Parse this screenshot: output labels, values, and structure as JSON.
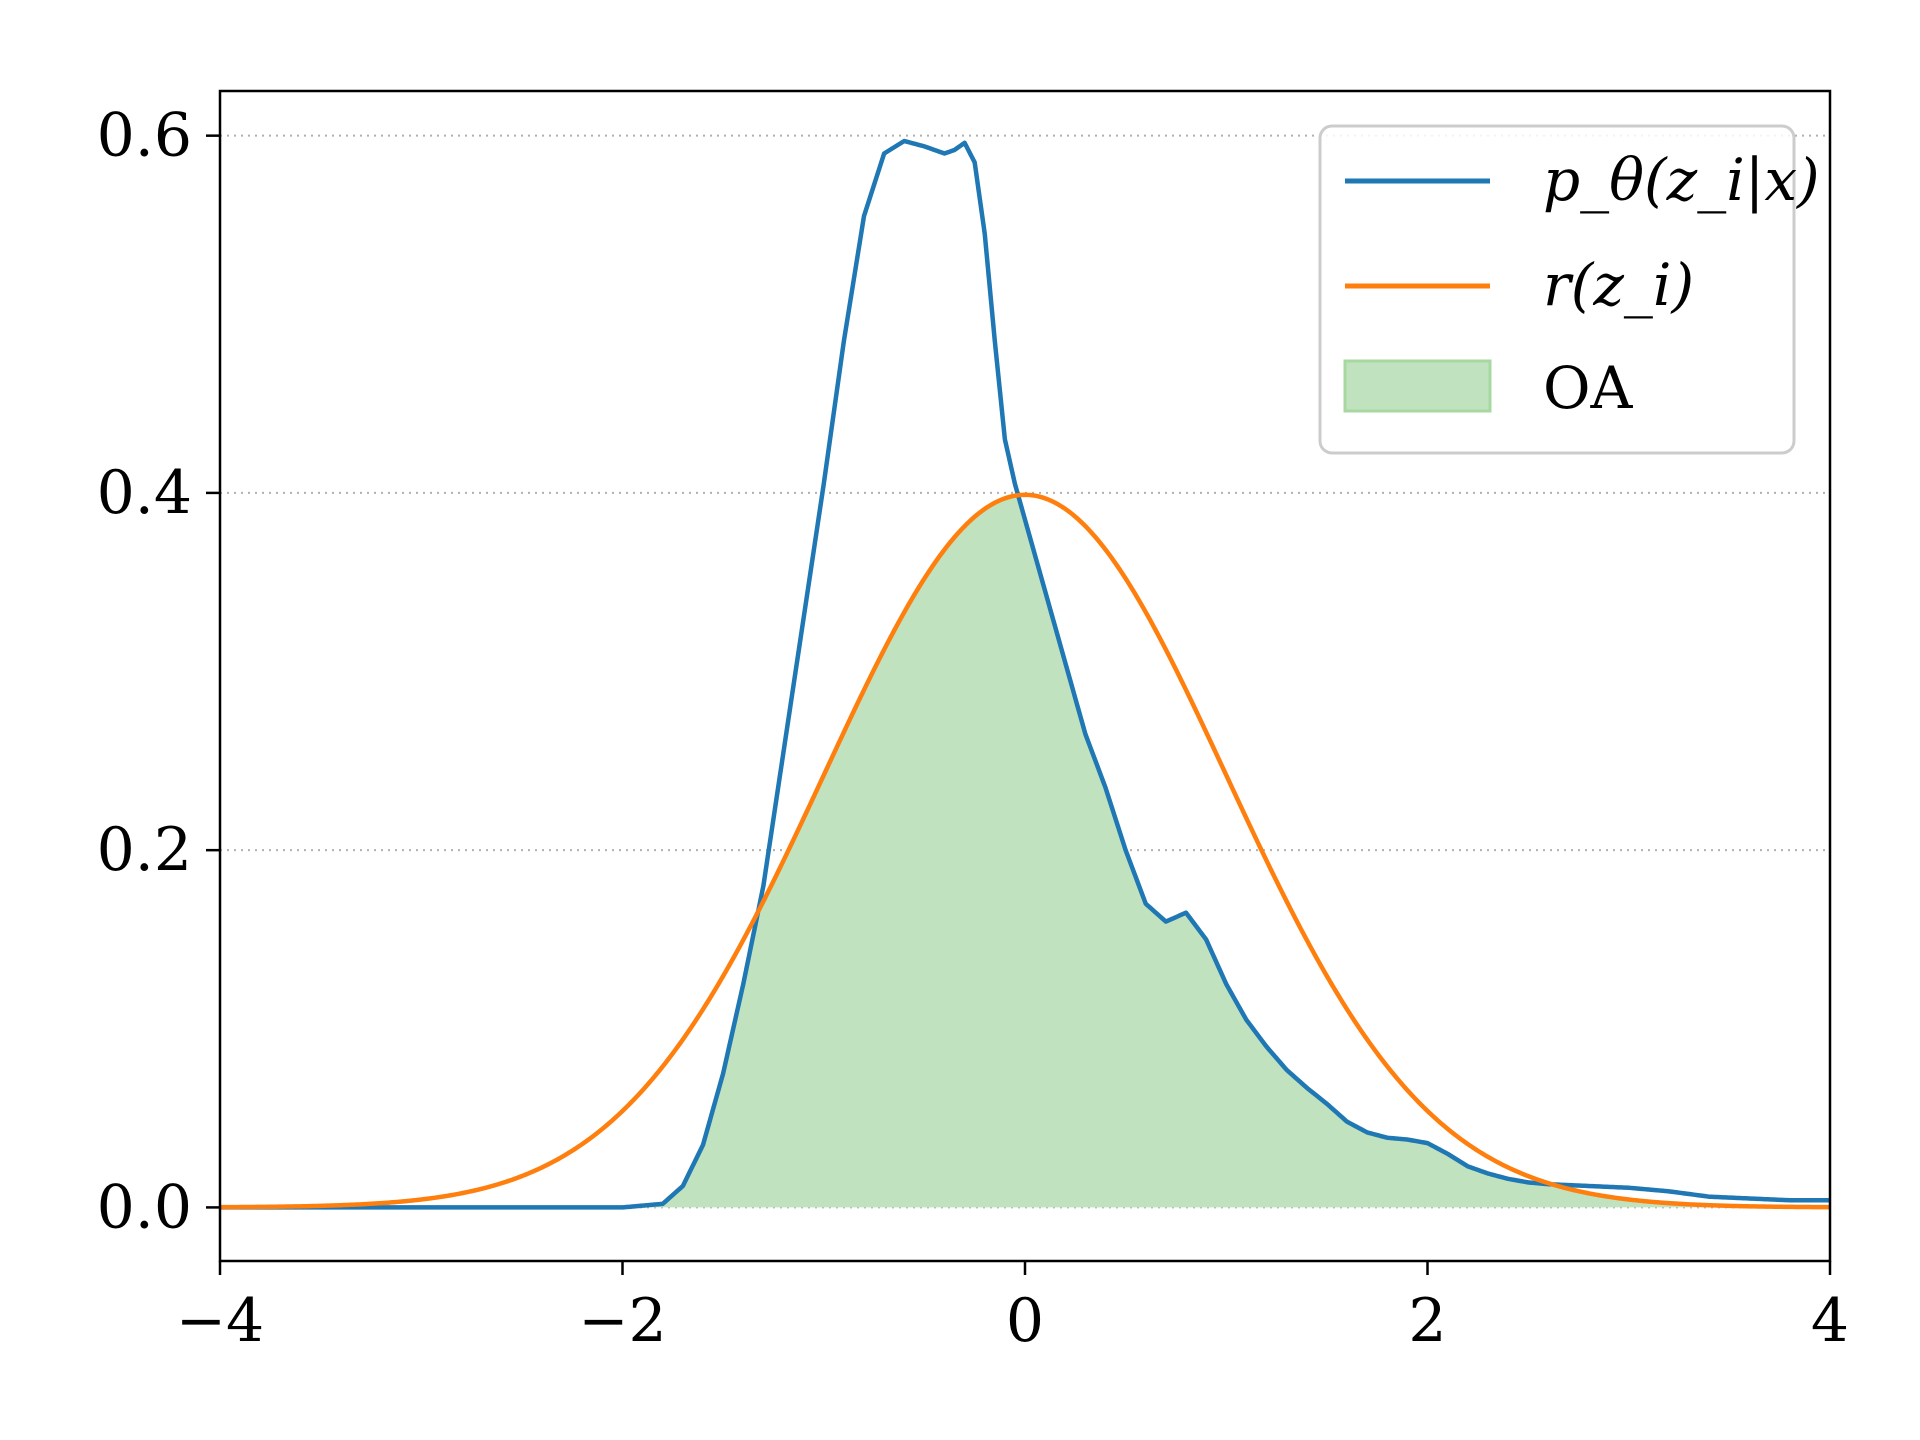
{
  "chart_data": {
    "type": "line",
    "title": "",
    "xlabel": "",
    "ylabel": "",
    "xlim": [
      -4,
      4
    ],
    "ylim": [
      -0.03,
      0.625
    ],
    "xticks": [
      -4,
      -2,
      0,
      2,
      4
    ],
    "xtick_labels": [
      "−4",
      "−2",
      "0",
      "2",
      "4"
    ],
    "yticks": [
      0.0,
      0.2,
      0.4,
      0.6
    ],
    "ytick_labels": [
      "0.0",
      "0.2",
      "0.4",
      "0.6"
    ],
    "grid": {
      "axis": "y",
      "style": "dotted"
    },
    "legend_position": "top-right",
    "series": [
      {
        "name": "p_θ(z_i|x)",
        "color": "#1f77b4",
        "x": [
          -4.0,
          -2.0,
          -1.8,
          -1.7,
          -1.6,
          -1.5,
          -1.4,
          -1.3,
          -1.2,
          -1.1,
          -1.0,
          -0.9,
          -0.8,
          -0.7,
          -0.6,
          -0.5,
          -0.4,
          -0.35,
          -0.3,
          -0.25,
          -0.2,
          -0.15,
          -0.1,
          -0.05,
          0.0,
          0.1,
          0.2,
          0.3,
          0.4,
          0.5,
          0.6,
          0.7,
          0.8,
          0.9,
          1.0,
          1.1,
          1.2,
          1.3,
          1.4,
          1.5,
          1.6,
          1.7,
          1.8,
          1.9,
          2.0,
          2.1,
          2.2,
          2.3,
          2.4,
          2.5,
          2.6,
          2.8,
          3.0,
          3.2,
          3.4,
          3.6,
          3.8,
          4.0
        ],
        "values": [
          0.0,
          0.0,
          0.002,
          0.012,
          0.035,
          0.075,
          0.125,
          0.18,
          0.255,
          0.33,
          0.405,
          0.485,
          0.555,
          0.59,
          0.597,
          0.594,
          0.59,
          0.592,
          0.596,
          0.585,
          0.545,
          0.485,
          0.43,
          0.405,
          0.385,
          0.345,
          0.305,
          0.265,
          0.235,
          0.2,
          0.17,
          0.16,
          0.165,
          0.15,
          0.125,
          0.105,
          0.09,
          0.077,
          0.067,
          0.058,
          0.048,
          0.042,
          0.039,
          0.038,
          0.036,
          0.03,
          0.023,
          0.019,
          0.016,
          0.014,
          0.013,
          0.012,
          0.011,
          0.009,
          0.006,
          0.005,
          0.004,
          0.004
        ]
      },
      {
        "name": "r(z_i)",
        "color": "#ff7f0e",
        "distribution": "standard normal",
        "mean": 0,
        "std": 1
      }
    ],
    "fill": {
      "name": "OA",
      "color": "#a6d8a0",
      "rule": "min of both curves"
    }
  }
}
